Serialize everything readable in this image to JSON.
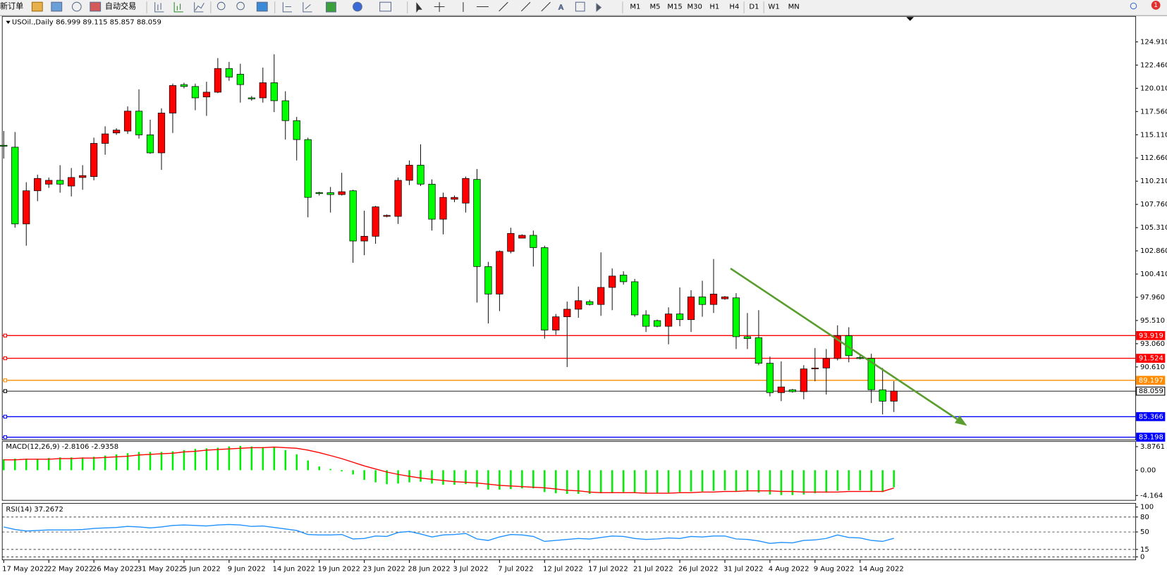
{
  "toolbar": {
    "new_order": "新订单",
    "auto_trading": "自动交易",
    "timeframes": [
      "M1",
      "M5",
      "M15",
      "M30",
      "H1",
      "H4",
      "D1",
      "W1",
      "MN"
    ],
    "notifications": 1
  },
  "chart_data": [
    {
      "type": "candlestick",
      "title": "USOil.,Daily",
      "subtitle": "86.999 89.115 85.857 88.059",
      "categories": [
        "17 May 2022",
        null,
        null,
        null,
        "22 May 2022",
        null,
        null,
        null,
        "26 May 2022",
        null,
        null,
        null,
        "31 May 2022",
        null,
        null,
        null,
        "5 Jun 2022",
        null,
        null,
        null,
        "9 Jun 2022",
        null,
        null,
        null,
        "14 Jun 2022",
        null,
        null,
        null,
        "19 Jun 2022",
        null,
        null,
        null,
        "23 Jun 2022",
        null,
        null,
        null,
        "28 Jun 2022",
        null,
        null,
        null,
        "3 Jul 2022",
        null,
        null,
        null,
        "7 Jul 2022",
        null,
        null,
        null,
        "12 Jul 2022",
        null,
        null,
        null,
        "17 Jul 2022",
        null,
        null,
        null,
        "21 Jul 2022",
        null,
        null,
        null,
        "26 Jul 2022",
        null,
        null,
        null,
        "31 Jul 2022",
        null,
        null,
        null,
        "4 Aug 2022",
        null,
        null,
        null,
        "9 Aug 2022",
        null,
        null,
        null,
        "14 Aug 2022",
        null,
        null,
        null
      ],
      "ohlc": [
        [
          114.0,
          115.5,
          112.6,
          113.9
        ],
        [
          113.8,
          115.4,
          105.3,
          105.7
        ],
        [
          105.7,
          110.1,
          103.4,
          109.2
        ],
        [
          109.2,
          110.9,
          108.1,
          110.5
        ],
        [
          109.9,
          110.6,
          109.5,
          110.3
        ],
        [
          110.3,
          111.9,
          109.0,
          109.9
        ],
        [
          109.7,
          111.6,
          108.6,
          110.6
        ],
        [
          110.6,
          111.9,
          109.3,
          110.8
        ],
        [
          110.7,
          114.8,
          110.3,
          114.2
        ],
        [
          114.2,
          116.0,
          113.0,
          115.2
        ],
        [
          115.3,
          115.8,
          115.1,
          115.6
        ],
        [
          115.5,
          118.1,
          115.2,
          117.6
        ],
        [
          117.6,
          119.9,
          114.7,
          115.1
        ],
        [
          115.1,
          116.7,
          113.1,
          113.2
        ],
        [
          113.2,
          117.9,
          111.4,
          117.4
        ],
        [
          117.4,
          120.5,
          115.3,
          120.3
        ],
        [
          120.4,
          120.6,
          120.0,
          120.2
        ],
        [
          120.2,
          120.5,
          117.7,
          119.0
        ],
        [
          119.1,
          120.7,
          117.1,
          119.6
        ],
        [
          119.6,
          123.2,
          119.5,
          122.1
        ],
        [
          122.1,
          122.8,
          120.8,
          121.2
        ],
        [
          121.5,
          122.6,
          118.5,
          120.4
        ],
        [
          119.0,
          119.2,
          118.7,
          118.9
        ],
        [
          119.0,
          122.2,
          118.5,
          120.6
        ],
        [
          120.6,
          123.6,
          117.5,
          118.7
        ],
        [
          118.7,
          119.7,
          114.6,
          116.6
        ],
        [
          116.6,
          117.0,
          112.4,
          114.6
        ],
        [
          114.6,
          114.8,
          106.4,
          108.5
        ],
        [
          109.0,
          109.1,
          108.7,
          108.9
        ],
        [
          109.0,
          109.6,
          106.9,
          108.8
        ],
        [
          108.8,
          111.1,
          108.7,
          109.1
        ],
        [
          109.2,
          109.3,
          101.6,
          103.9
        ],
        [
          103.9,
          107.1,
          102.4,
          104.4
        ],
        [
          104.4,
          107.6,
          103.6,
          107.5
        ],
        [
          106.5,
          106.7,
          106.4,
          106.6
        ],
        [
          106.5,
          110.6,
          105.7,
          110.3
        ],
        [
          110.3,
          112.4,
          109.8,
          111.9
        ],
        [
          111.9,
          114.1,
          109.7,
          109.9
        ],
        [
          109.9,
          110.4,
          105.0,
          106.2
        ],
        [
          106.2,
          109.0,
          104.6,
          108.5
        ],
        [
          108.3,
          108.7,
          108.0,
          108.5
        ],
        [
          107.9,
          110.7,
          106.9,
          110.5
        ],
        [
          110.4,
          111.5,
          97.4,
          101.2
        ],
        [
          101.2,
          101.7,
          95.2,
          98.3
        ],
        [
          98.3,
          102.9,
          96.5,
          102.8
        ],
        [
          102.8,
          105.3,
          102.6,
          104.7
        ],
        [
          104.2,
          104.6,
          104.2,
          104.5
        ],
        [
          104.5,
          105.0,
          101.2,
          103.2
        ],
        [
          103.2,
          103.4,
          93.6,
          94.5
        ],
        [
          94.5,
          96.2,
          94.0,
          95.9
        ],
        [
          95.9,
          97.5,
          90.6,
          96.7
        ],
        [
          96.7,
          99.1,
          95.8,
          97.6
        ],
        [
          97.5,
          97.7,
          97.1,
          97.2
        ],
        [
          97.2,
          102.7,
          96.0,
          99.0
        ],
        [
          99.0,
          101.0,
          96.6,
          100.2
        ],
        [
          100.3,
          100.7,
          99.3,
          99.6
        ],
        [
          99.6,
          99.9,
          95.9,
          96.1
        ],
        [
          96.1,
          96.6,
          94.3,
          94.9
        ],
        [
          95.5,
          95.6,
          94.8,
          94.9
        ],
        [
          94.9,
          96.9,
          93.0,
          96.2
        ],
        [
          96.2,
          99.0,
          94.9,
          95.6
        ],
        [
          95.6,
          98.7,
          94.3,
          98.0
        ],
        [
          98.0,
          99.7,
          95.9,
          97.2
        ],
        [
          97.2,
          102.0,
          96.3,
          98.3
        ],
        [
          97.8,
          98.1,
          97.7,
          98.0
        ],
        [
          97.9,
          98.4,
          92.5,
          93.8
        ],
        [
          93.8,
          96.3,
          92.5,
          93.6
        ],
        [
          93.7,
          96.6,
          90.8,
          91.0
        ],
        [
          91.0,
          91.7,
          87.5,
          87.9
        ],
        [
          87.9,
          91.2,
          87.0,
          88.5
        ],
        [
          88.2,
          88.3,
          87.9,
          88.0
        ],
        [
          88.0,
          90.8,
          87.2,
          90.4
        ],
        [
          90.4,
          92.6,
          89.1,
          90.5
        ],
        [
          90.5,
          92.5,
          87.7,
          91.5
        ],
        [
          91.5,
          95.0,
          91.3,
          93.9
        ],
        [
          93.9,
          94.8,
          91.1,
          91.8
        ],
        [
          91.6,
          91.9,
          91.4,
          91.5
        ],
        [
          91.5,
          92.0,
          86.8,
          88.2
        ],
        [
          88.2,
          90.5,
          85.6,
          87.0
        ],
        [
          86.999,
          89.115,
          85.857,
          88.059
        ]
      ],
      "up_color": "#ff0000",
      "down_color": "#00ff00",
      "ylim": [
        82.9,
        127.6
      ],
      "yticks": [
        {
          "value": 124.91,
          "label": "124.910"
        },
        {
          "value": 122.46,
          "label": "122.460"
        },
        {
          "value": 120.01,
          "label": "120.010"
        },
        {
          "value": 117.56,
          "label": "117.560"
        },
        {
          "value": 115.11,
          "label": "115.110"
        },
        {
          "value": 112.66,
          "label": "112.660"
        },
        {
          "value": 110.21,
          "label": "110.210"
        },
        {
          "value": 107.76,
          "label": "107.760"
        },
        {
          "value": 105.31,
          "label": "105.310"
        },
        {
          "value": 102.86,
          "label": "102.860"
        },
        {
          "value": 100.41,
          "label": "100.410"
        },
        {
          "value": 97.96,
          "label": "97.960"
        },
        {
          "value": 95.51,
          "label": "95.510"
        },
        {
          "value": 93.06,
          "label": "93.060"
        },
        {
          "value": 90.61,
          "label": "90.610"
        }
      ],
      "levels": [
        {
          "value": 93.919,
          "color": "#ff0000"
        },
        {
          "value": 91.524,
          "color": "#ff0000"
        },
        {
          "value": 89.197,
          "color": "#ff8c00"
        },
        {
          "value": 88.059,
          "color": "#000000"
        },
        {
          "value": 85.366,
          "color": "#0000ff"
        },
        {
          "value": 83.198,
          "color": "#0000ff"
        }
      ],
      "trendline": {
        "x": [
          64.5,
          85.5
        ],
        "y": [
          101.0,
          84.4
        ],
        "color": "#5a9e2f"
      }
    },
    {
      "type": "macd",
      "title": "MACD(12,26,9) -2.8106 -2.9358",
      "series": [
        {
          "name": "MACD",
          "color": "#00ee00",
          "values": [
            1.8,
            1.9,
            1.9,
            1.9,
            2.0,
            2.1,
            2.1,
            2.1,
            2.2,
            2.4,
            2.6,
            2.8,
            3.0,
            3.0,
            3.0,
            3.1,
            3.3,
            3.5,
            3.6,
            3.7,
            3.9,
            4.0,
            3.9,
            3.8,
            3.8,
            3.3,
            2.6,
            1.6,
            0.6,
            0.2,
            -0.2,
            -0.7,
            -1.6,
            -2.0,
            -2.3,
            -2.2,
            -2.0,
            -1.9,
            -2.2,
            -2.4,
            -2.4,
            -2.3,
            -2.8,
            -3.2,
            -3.2,
            -3.1,
            -3.0,
            -3.0,
            -3.6,
            -3.8,
            -3.9,
            -3.9,
            -3.9,
            -3.8,
            -3.7,
            -3.6,
            -3.7,
            -3.8,
            -3.8,
            -3.7,
            -3.6,
            -3.5,
            -3.5,
            -3.4,
            -3.3,
            -3.5,
            -3.5,
            -3.7,
            -4.0,
            -4.1,
            -4.1,
            -4.0,
            -3.8,
            -3.7,
            -3.4,
            -3.3,
            -3.3,
            -3.5,
            -3.6,
            -2.8106
          ]
        },
        {
          "name": "Signal",
          "color": "#ff0000",
          "values": [
            1.7,
            1.7,
            1.8,
            1.8,
            1.8,
            1.9,
            1.9,
            2.0,
            2.0,
            2.1,
            2.2,
            2.3,
            2.5,
            2.6,
            2.7,
            2.8,
            3.0,
            3.1,
            3.3,
            3.4,
            3.5,
            3.6,
            3.7,
            3.7,
            3.8,
            3.7,
            3.6,
            3.3,
            2.9,
            2.4,
            1.9,
            1.3,
            0.7,
            0.2,
            -0.3,
            -0.7,
            -1.0,
            -1.3,
            -1.5,
            -1.7,
            -1.9,
            -2.0,
            -2.1,
            -2.3,
            -2.5,
            -2.6,
            -2.7,
            -2.8,
            -2.9,
            -3.1,
            -3.3,
            -3.4,
            -3.6,
            -3.7,
            -3.7,
            -3.7,
            -3.7,
            -3.8,
            -3.8,
            -3.8,
            -3.7,
            -3.7,
            -3.6,
            -3.6,
            -3.5,
            -3.5,
            -3.4,
            -3.4,
            -3.4,
            -3.5,
            -3.5,
            -3.6,
            -3.6,
            -3.6,
            -3.6,
            -3.5,
            -3.5,
            -3.5,
            -3.5,
            -2.9358
          ]
        }
      ],
      "ylim": [
        -4.96,
        4.72
      ],
      "yticks": [
        3.8761,
        {
          "value": 0,
          "label": "0.00"
        },
        -4.164
      ]
    },
    {
      "type": "line",
      "title": "RSI(14) 37.2672",
      "series": [
        {
          "name": "RSI",
          "color": "#1e90ff",
          "values": [
            60,
            55,
            52,
            53,
            54,
            54,
            54,
            55,
            57,
            58,
            59,
            61,
            60,
            58,
            60,
            63,
            64,
            63,
            62,
            64,
            65,
            64,
            61,
            62,
            59,
            56,
            53,
            45,
            44,
            44,
            45,
            36,
            37,
            42,
            41,
            49,
            51,
            46,
            40,
            44,
            45,
            47,
            36,
            33,
            40,
            45,
            44,
            41,
            31,
            33,
            35,
            37,
            36,
            39,
            42,
            41,
            37,
            35,
            36,
            38,
            37,
            41,
            40,
            42,
            42,
            36,
            35,
            32,
            27,
            29,
            28,
            33,
            34,
            37,
            44,
            39,
            38,
            33,
            31,
            37.2672
          ]
        }
      ],
      "ylim": [
        -6,
        107.5
      ],
      "yticks": [
        100,
        80,
        50,
        15,
        0
      ]
    }
  ]
}
